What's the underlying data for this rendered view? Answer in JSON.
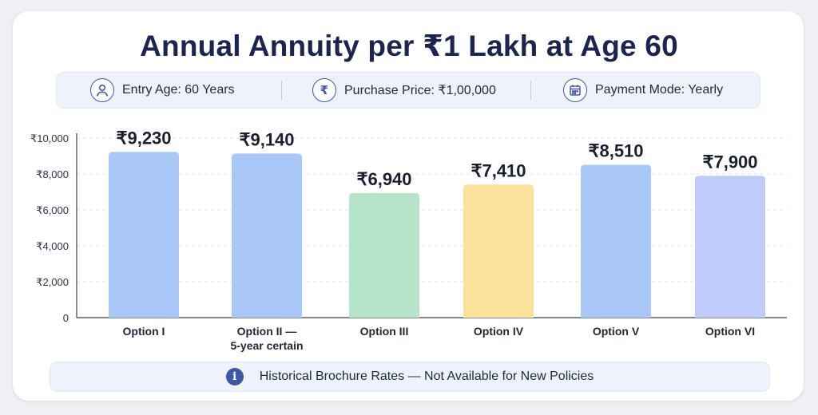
{
  "title": "Annual Annuity per ₹1 Lakh at Age 60",
  "info": [
    {
      "icon": "person-icon",
      "text": "Entry Age: 60 Years"
    },
    {
      "icon": "rupee-icon",
      "text": "Purchase Price: ₹1,00,000"
    },
    {
      "icon": "calendar-icon",
      "text": "Payment Mode: Yearly"
    }
  ],
  "footer": {
    "icon": "info-icon",
    "text": "Historical Brochure Rates — Not Available for New Policies"
  },
  "colors": {
    "title": "#1b2550",
    "accent": "#3c58a8"
  },
  "chart_data": {
    "type": "bar",
    "title": "Annual Annuity per ₹1 Lakh at Age 60",
    "xlabel": "",
    "ylabel": "",
    "categories": [
      [
        "Option I"
      ],
      [
        "Option II —",
        "5-year certain"
      ],
      [
        "Option III"
      ],
      [
        "Option IV"
      ],
      [
        "Option V"
      ],
      [
        "Option VI"
      ]
    ],
    "values": [
      9230,
      9140,
      6940,
      7410,
      8510,
      7900
    ],
    "value_labels": [
      "₹9,230",
      "₹9,140",
      "₹6,940",
      "₹7,410",
      "₹8,510",
      "₹7,900"
    ],
    "bar_colors": [
      "#a9c8f8",
      "#a9c8f8",
      "#b6e4c8",
      "#fbe29a",
      "#a9c8f8",
      "#bfcbfb"
    ],
    "ylim": [
      0,
      10000
    ],
    "yticks": [
      0,
      2000,
      4000,
      6000,
      8000,
      10000
    ],
    "ytick_labels": [
      "0",
      "₹2,000",
      "₹4,000",
      "₹6,000",
      "₹8,000",
      "₹10,000"
    ],
    "grid": true,
    "legend": "none"
  }
}
